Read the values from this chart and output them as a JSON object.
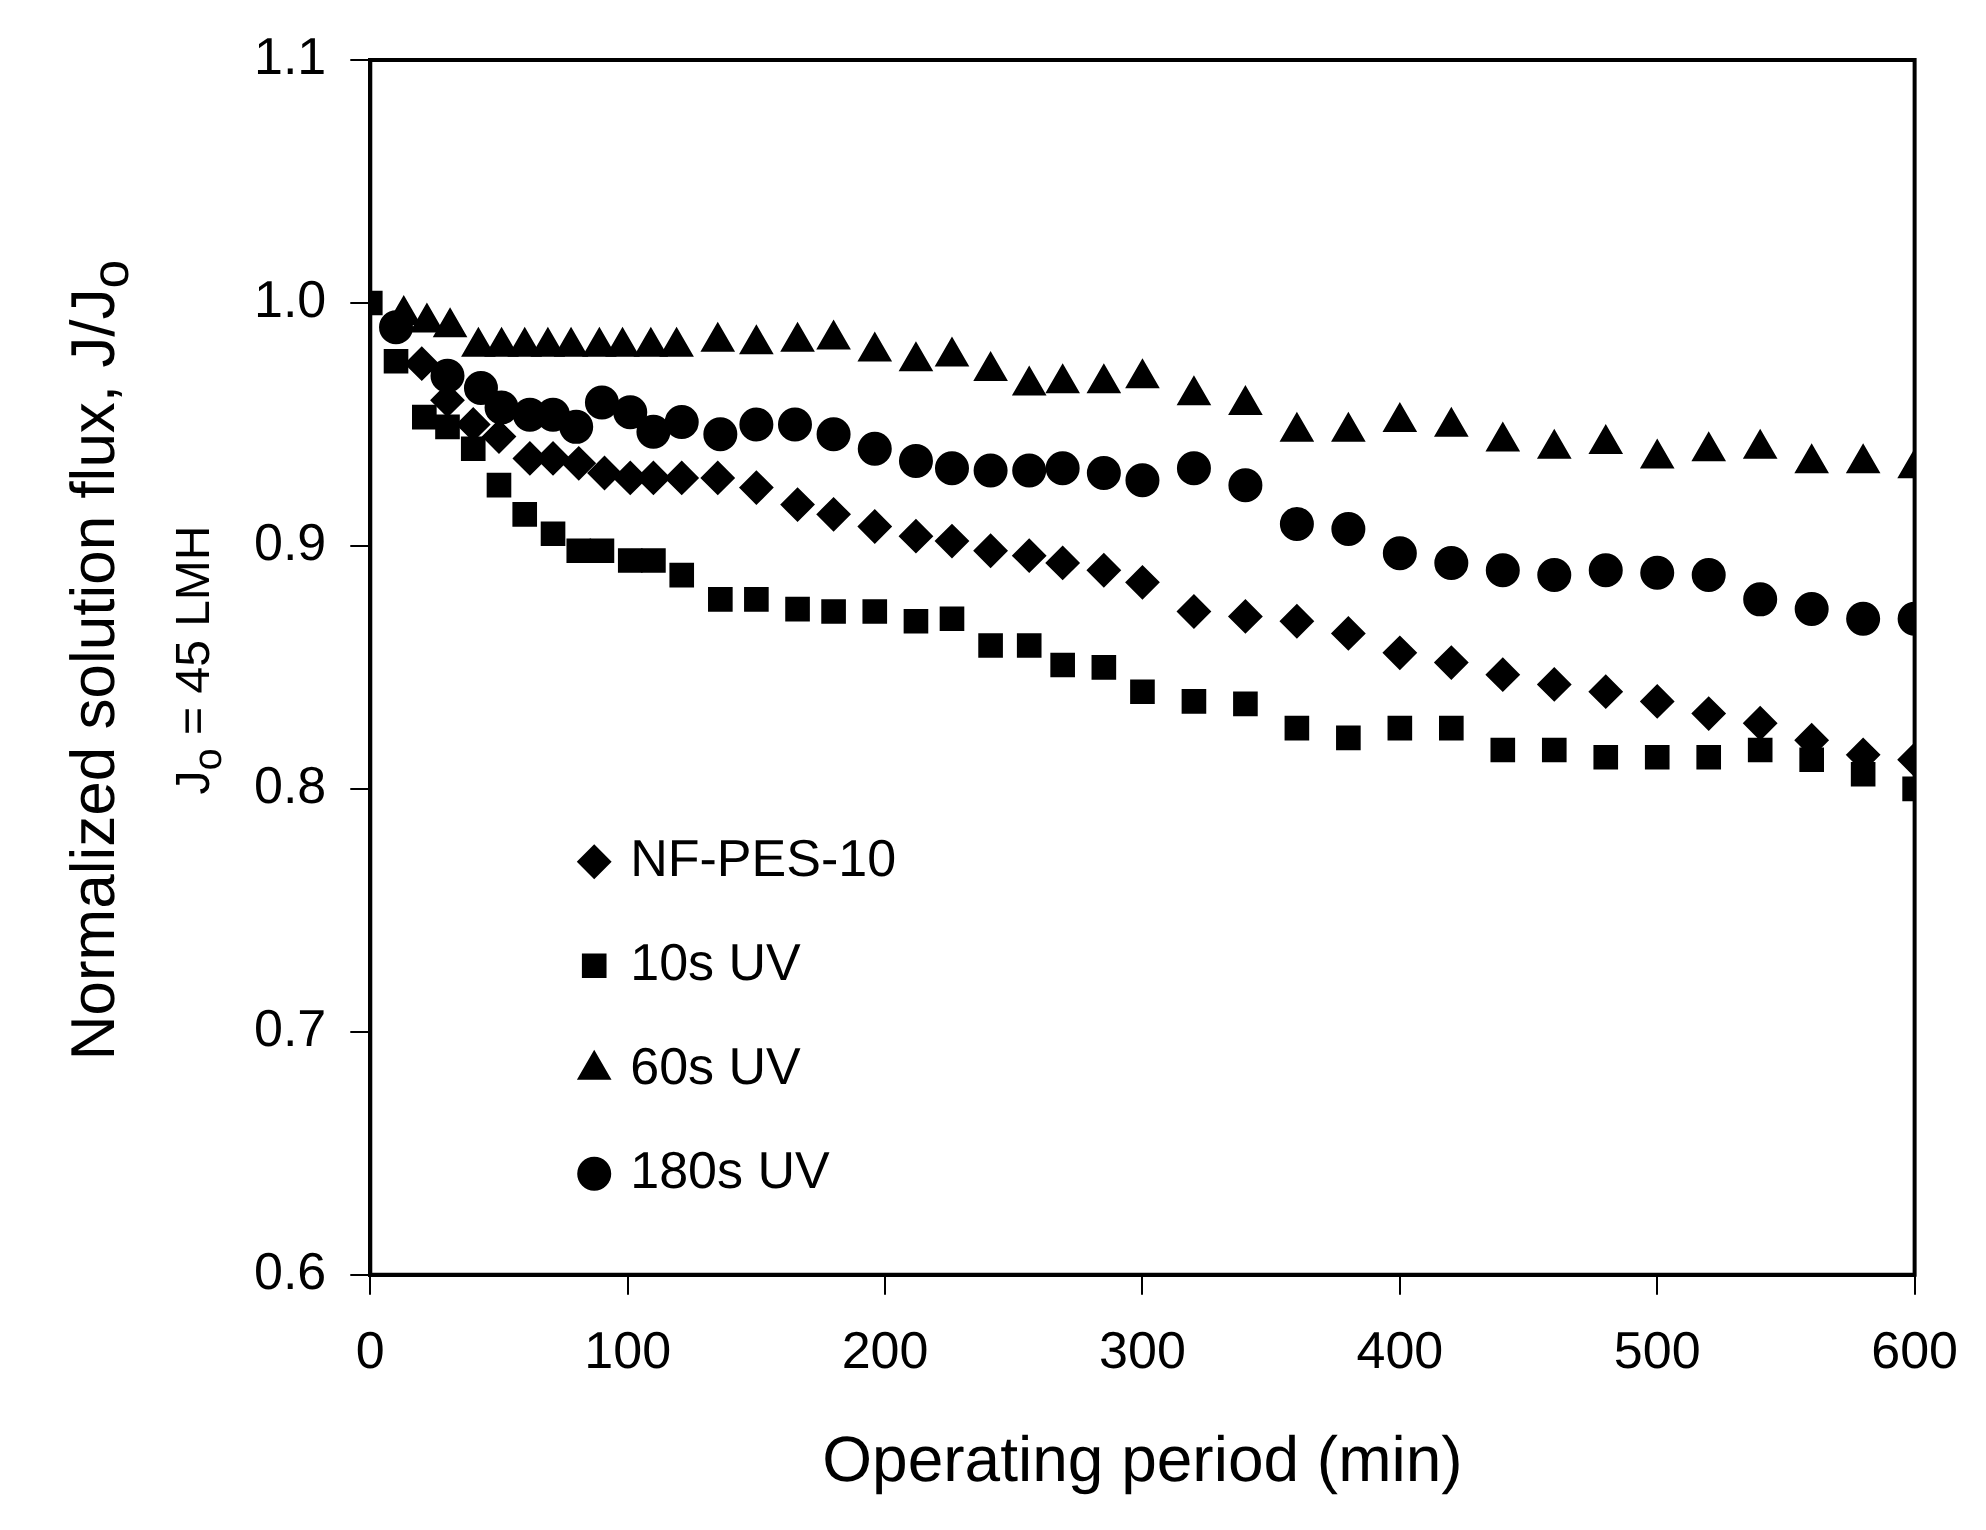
{
  "chart_data": {
    "type": "scatter",
    "xlabel": "Operating period (min)",
    "ylabel": "Normalized solution flux, J/J$_{o}$",
    "annotations": [
      "J$_{o}$ = 45 LMH"
    ],
    "xlim": [
      0,
      600
    ],
    "xticks": [
      0,
      100,
      200,
      300,
      400,
      500,
      600
    ],
    "ylim": [
      0.6,
      1.1
    ],
    "yticks": [
      0.6,
      0.7,
      0.8,
      0.9,
      {
        "value": 1,
        "label": "1.0"
      },
      1.1
    ],
    "grid": false,
    "legend": "left",
    "series": [
      {
        "name": "NF-PES-10",
        "color": "#000000",
        "marker": "diamond",
        "x": [
          20,
          30,
          40,
          50,
          62,
          71,
          81,
          91,
          101,
          110,
          121,
          135,
          150,
          166,
          180,
          196,
          212,
          226,
          241,
          256,
          269,
          285,
          300,
          320,
          340,
          360,
          380,
          400,
          420,
          440,
          460,
          480,
          500,
          520,
          540,
          560,
          580,
          600
        ],
        "values": [
          0.975,
          0.96,
          0.95,
          0.945,
          0.936,
          0.936,
          0.934,
          0.93,
          0.928,
          0.928,
          0.928,
          0.928,
          0.924,
          0.917,
          0.913,
          0.908,
          0.904,
          0.902,
          0.898,
          0.896,
          0.893,
          0.89,
          0.885,
          0.873,
          0.871,
          0.869,
          0.864,
          0.856,
          0.852,
          0.847,
          0.843,
          0.84,
          0.836,
          0.831,
          0.827,
          0.82,
          0.814,
          0.812
        ]
      },
      {
        "name": "10s UV",
        "color": "#000000",
        "marker": "square",
        "x": [
          0,
          10,
          21,
          30,
          40,
          50,
          60,
          71,
          81,
          90,
          101,
          110,
          121,
          136,
          150,
          166,
          180,
          196,
          212,
          226,
          241,
          256,
          269,
          285,
          300,
          320,
          340,
          360,
          380,
          400,
          420,
          440,
          460,
          480,
          500,
          520,
          540,
          560,
          580,
          600
        ],
        "values": [
          1.0,
          0.976,
          0.953,
          0.949,
          0.94,
          0.925,
          0.913,
          0.905,
          0.898,
          0.898,
          0.894,
          0.894,
          0.888,
          0.878,
          0.878,
          0.874,
          0.873,
          0.873,
          0.869,
          0.87,
          0.859,
          0.859,
          0.851,
          0.85,
          0.84,
          0.836,
          0.835,
          0.825,
          0.821,
          0.825,
          0.825,
          0.816,
          0.816,
          0.813,
          0.813,
          0.813,
          0.816,
          0.812,
          0.806,
          0.8
        ]
      },
      {
        "name": "60s UV",
        "color": "#000000",
        "marker": "triangle",
        "x": [
          13,
          22,
          31,
          42,
          51,
          60,
          69,
          78,
          89,
          98,
          109,
          119,
          135,
          150,
          166,
          180,
          196,
          212,
          226,
          241,
          256,
          269,
          285,
          300,
          320,
          340,
          360,
          380,
          400,
          420,
          440,
          460,
          480,
          500,
          520,
          540,
          560,
          580,
          600
        ],
        "values": [
          0.995,
          0.992,
          0.99,
          0.982,
          0.982,
          0.982,
          0.982,
          0.982,
          0.982,
          0.982,
          0.982,
          0.982,
          0.984,
          0.983,
          0.984,
          0.985,
          0.98,
          0.976,
          0.978,
          0.972,
          0.966,
          0.967,
          0.967,
          0.969,
          0.962,
          0.958,
          0.947,
          0.947,
          0.951,
          0.949,
          0.943,
          0.94,
          0.942,
          0.936,
          0.939,
          0.94,
          0.934,
          0.934,
          0.932
        ]
      },
      {
        "name": "180s UV",
        "color": "#000000",
        "marker": "circle",
        "x": [
          10,
          20,
          30,
          43,
          51,
          62,
          71,
          80,
          90,
          101,
          110,
          121,
          136,
          150,
          165,
          180,
          196,
          212,
          226,
          241,
          256,
          269,
          285,
          300,
          320,
          340,
          360,
          380,
          400,
          420,
          440,
          460,
          480,
          500,
          520,
          540,
          560,
          580,
          600
        ],
        "values": [
          0.99,
          null,
          0.97,
          0.965,
          0.957,
          0.954,
          0.954,
          0.949,
          0.959,
          0.955,
          0.947,
          0.951,
          0.946,
          0.95,
          0.95,
          0.946,
          0.94,
          0.935,
          0.932,
          0.931,
          0.931,
          0.932,
          0.93,
          0.927,
          0.932,
          0.925,
          0.909,
          0.907,
          0.897,
          0.893,
          0.89,
          0.888,
          0.89,
          0.889,
          0.888,
          0.878,
          0.874,
          0.87,
          0.87
        ]
      }
    ]
  }
}
